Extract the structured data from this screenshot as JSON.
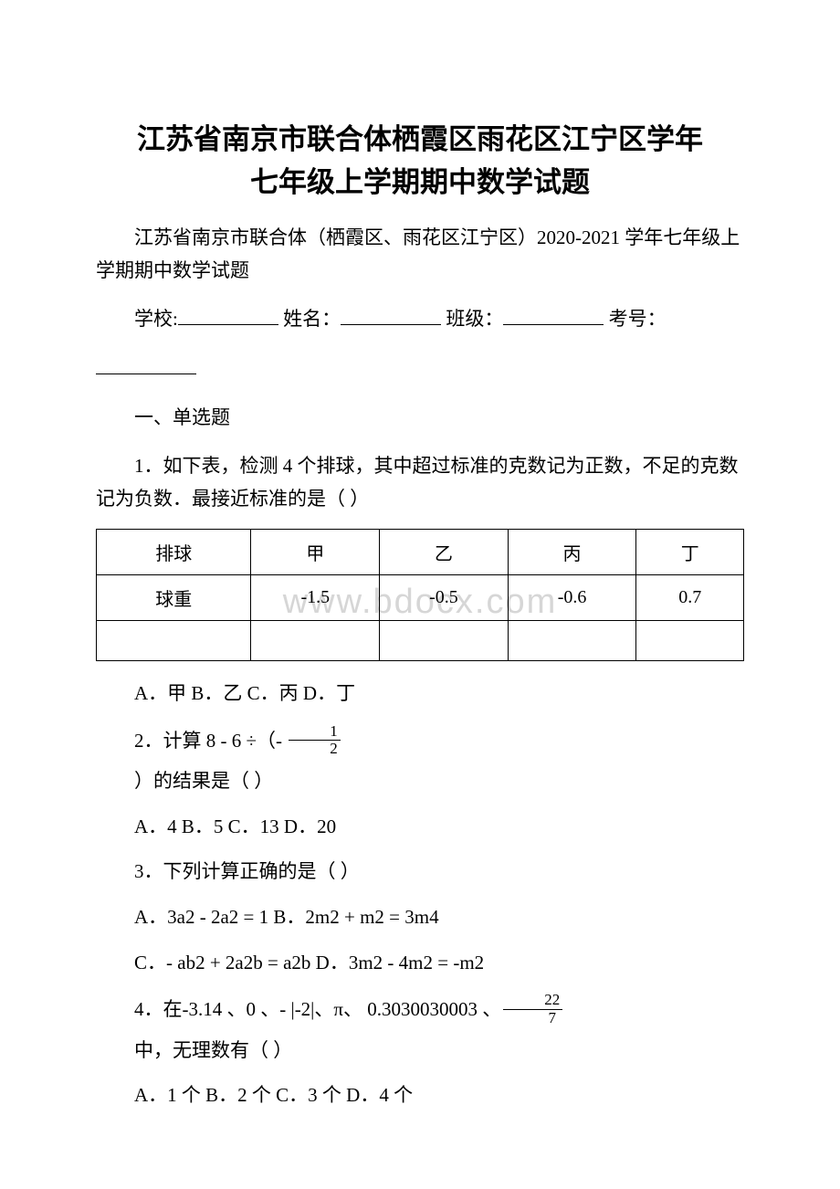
{
  "title_line1": "江苏省南京市联合体栖霞区雨花区江宁区学年",
  "title_line2": "七年级上学期期中数学试题",
  "subtitle": "江苏省南京市联合体（栖霞区、雨花区江宁区）2020-2021 学年七年级上学期期中数学试题",
  "form": {
    "school_label": "学校:",
    "name_label": "姓名：",
    "class_label": "班级：",
    "exam_no_label": "考号："
  },
  "section1": "一、单选题",
  "q1": {
    "text": "1．如下表，检测 4 个排球，其中超过标准的克数记为正数，不足的克数记为负数．最接近标准的是（ ）",
    "table": {
      "row1": [
        "排球",
        "甲",
        "乙",
        "丙",
        "丁"
      ],
      "row2": [
        "球重",
        "-1.5",
        "-0.5",
        "-0.6",
        "0.7"
      ],
      "row3": [
        "",
        "",
        "",
        "",
        ""
      ]
    },
    "options": "A．甲 B．乙 C．丙 D．丁"
  },
  "q2": {
    "prefix": "2．计算 8 - 6 ÷（- ",
    "frac_num": "1",
    "frac_den": "2",
    "line2": "）的结果是（ ）",
    "options": "A．4 B．5 C．13 D．20"
  },
  "q3": {
    "text": "3．下列计算正确的是（ ）",
    "optA_B": "A．3a2 - 2a2 = 1 B．2m2 + m2 = 3m4",
    "optC_D": "C．- ab2 + 2a2b = a2b D．3m2 - 4m2 = -m2"
  },
  "q4": {
    "prefix": "4．在-3.14 、0 、- |-2|、π、 0.3030030003 、",
    "frac_num": "22",
    "frac_den": "7",
    "line2": " 中，无理数有（ ）",
    "options": "A．1 个 B．2 个 C．3 个 D．4 个"
  },
  "watermark": "www.bdocx.com"
}
